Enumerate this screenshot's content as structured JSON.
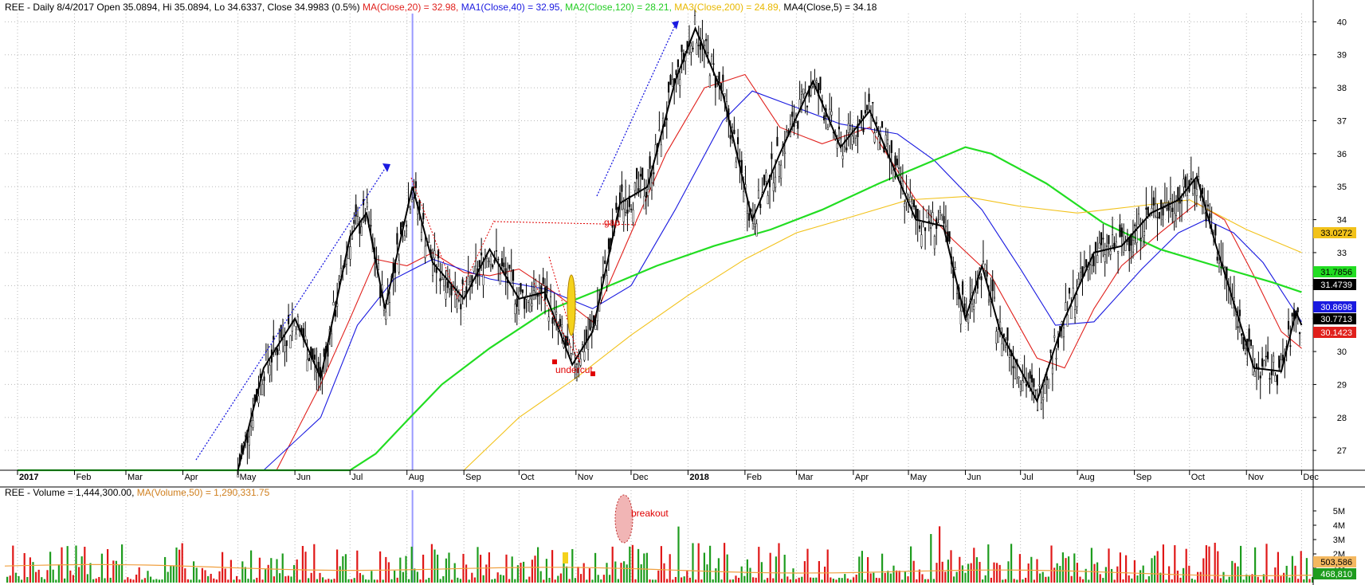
{
  "header": {
    "price": "REE - Daily 8/4/2017 Open 35.0894, Hi 35.0894, Lo 34.6337, Close 34.9983 (0.5%)",
    "ma20": "MA(Close,20) = 32.98,",
    "ma40": "MA1(Close,40) = 32.95,",
    "ma120": "MA2(Close,120) = 28.21,",
    "ma200": "MA3(Close,200) = 24.89,",
    "ma5": "MA4(Close,5) = 34.18"
  },
  "volume_header": {
    "vol": "REE - Volume = 1,444,300.00,",
    "ma": "MA(Volume,50) = 1,290,331.75"
  },
  "colors": {
    "ma20": "#e0201c",
    "ma40": "#1a1ae0",
    "ma120": "#22dd22",
    "ma200": "#f2c21a",
    "ma5": "#000000",
    "up": "#1e9c1e",
    "down": "#e01818",
    "cursor": "#9999ff",
    "grid": "#b8b8b8",
    "annotation": "#e00000"
  },
  "annotations": {
    "gap": "gap",
    "undercut": "undercut",
    "breakout": "breakout"
  },
  "chart_data": [
    {
      "type": "line",
      "panel": "price",
      "x_labels": [
        "2017",
        "Feb",
        "Mar",
        "Apr",
        "May",
        "Jun",
        "Jul",
        "Aug",
        "Sep",
        "Oct",
        "Nov",
        "Dec",
        "2018",
        "Feb",
        "Mar",
        "Apr",
        "May",
        "Jun",
        "Jul",
        "Aug",
        "Sep",
        "Oct",
        "Nov",
        "Dec"
      ],
      "y_ticks": [
        27,
        28,
        29,
        30,
        31,
        32,
        33,
        34,
        35,
        36,
        37,
        38,
        39,
        40
      ],
      "ylim": [
        26.4,
        40.25
      ],
      "last_values": [
        {
          "label": "33.0272",
          "value": 33.03,
          "series": "ma200"
        },
        {
          "label": "31.7856",
          "value": 31.79,
          "series": "ma120"
        },
        {
          "label": "31.4739",
          "value": 31.47,
          "series": "ma5"
        },
        {
          "label": "30.8698",
          "value": 30.87,
          "series": "ma40"
        },
        {
          "label": "30.7713",
          "value": 30.77,
          "series": "price"
        },
        {
          "label": "30.1423",
          "value": 30.14,
          "series": "ma20"
        }
      ],
      "close": [
        {
          "x": "2017-05-01",
          "y": 26.4
        },
        {
          "x": "2017-05-15",
          "y": 29.5
        },
        {
          "x": "2017-06-01",
          "y": 31.0
        },
        {
          "x": "2017-06-15",
          "y": 29.2
        },
        {
          "x": "2017-07-01",
          "y": 33.5
        },
        {
          "x": "2017-07-10",
          "y": 34.2
        },
        {
          "x": "2017-07-20",
          "y": 31.3
        },
        {
          "x": "2017-08-04",
          "y": 35.0
        },
        {
          "x": "2017-08-15",
          "y": 32.7
        },
        {
          "x": "2017-09-01",
          "y": 31.6
        },
        {
          "x": "2017-09-15",
          "y": 33.1
        },
        {
          "x": "2017-10-01",
          "y": 31.6
        },
        {
          "x": "2017-10-15",
          "y": 31.8
        },
        {
          "x": "2017-10-30",
          "y": 29.6
        },
        {
          "x": "2017-11-10",
          "y": 30.6
        },
        {
          "x": "2017-11-25",
          "y": 34.5
        },
        {
          "x": "2017-12-10",
          "y": 35.0
        },
        {
          "x": "2017-12-25",
          "y": 38.2
        },
        {
          "x": "2018-01-05",
          "y": 39.8
        },
        {
          "x": "2018-01-20",
          "y": 37.8
        },
        {
          "x": "2018-02-05",
          "y": 34.0
        },
        {
          "x": "2018-02-20",
          "y": 36.0
        },
        {
          "x": "2018-03-10",
          "y": 38.2
        },
        {
          "x": "2018-03-25",
          "y": 36.2
        },
        {
          "x": "2018-04-10",
          "y": 37.3
        },
        {
          "x": "2018-04-25",
          "y": 35.3
        },
        {
          "x": "2018-05-05",
          "y": 34.0
        },
        {
          "x": "2018-05-20",
          "y": 33.8
        },
        {
          "x": "2018-06-01",
          "y": 31.0
        },
        {
          "x": "2018-06-10",
          "y": 32.6
        },
        {
          "x": "2018-06-20",
          "y": 30.6
        },
        {
          "x": "2018-07-10",
          "y": 28.5
        },
        {
          "x": "2018-07-25",
          "y": 31.0
        },
        {
          "x": "2018-08-10",
          "y": 33.0
        },
        {
          "x": "2018-08-25",
          "y": 33.2
        },
        {
          "x": "2018-09-10",
          "y": 34.2
        },
        {
          "x": "2018-09-25",
          "y": 34.6
        },
        {
          "x": "2018-10-05",
          "y": 35.3
        },
        {
          "x": "2018-10-15",
          "y": 33.3
        },
        {
          "x": "2018-10-25",
          "y": 31.5
        },
        {
          "x": "2018-11-05",
          "y": 29.5
        },
        {
          "x": "2018-11-20",
          "y": 29.4
        },
        {
          "x": "2018-11-28",
          "y": 31.2
        },
        {
          "x": "2018-12-01",
          "y": 30.8
        }
      ],
      "series": [
        {
          "name": "MA(Close,20)",
          "key": "ma20",
          "points": [
            {
              "x": "2017-05-22",
              "y": 26.4
            },
            {
              "x": "2017-06-15",
              "y": 29.0
            },
            {
              "x": "2017-07-01",
              "y": 31.0
            },
            {
              "x": "2017-07-15",
              "y": 32.8
            },
            {
              "x": "2017-08-01",
              "y": 32.6
            },
            {
              "x": "2017-08-15",
              "y": 33.0
            },
            {
              "x": "2017-09-01",
              "y": 32.4
            },
            {
              "x": "2017-09-15",
              "y": 32.3
            },
            {
              "x": "2017-10-01",
              "y": 32.5
            },
            {
              "x": "2017-10-20",
              "y": 31.8
            },
            {
              "x": "2017-11-10",
              "y": 30.9
            },
            {
              "x": "2017-12-01",
              "y": 33.6
            },
            {
              "x": "2017-12-20",
              "y": 36.0
            },
            {
              "x": "2018-01-10",
              "y": 38.0
            },
            {
              "x": "2018-02-01",
              "y": 38.4
            },
            {
              "x": "2018-02-20",
              "y": 36.8
            },
            {
              "x": "2018-03-15",
              "y": 36.3
            },
            {
              "x": "2018-04-10",
              "y": 36.8
            },
            {
              "x": "2018-05-05",
              "y": 34.6
            },
            {
              "x": "2018-05-25",
              "y": 33.4
            },
            {
              "x": "2018-06-15",
              "y": 32.3
            },
            {
              "x": "2018-07-10",
              "y": 29.8
            },
            {
              "x": "2018-07-25",
              "y": 29.5
            },
            {
              "x": "2018-08-10",
              "y": 31.3
            },
            {
              "x": "2018-08-25",
              "y": 32.6
            },
            {
              "x": "2018-09-15",
              "y": 33.6
            },
            {
              "x": "2018-10-05",
              "y": 34.5
            },
            {
              "x": "2018-10-20",
              "y": 34.0
            },
            {
              "x": "2018-11-05",
              "y": 32.3
            },
            {
              "x": "2018-11-20",
              "y": 30.6
            },
            {
              "x": "2018-12-01",
              "y": 30.1
            }
          ]
        },
        {
          "name": "MA1(Close,40)",
          "key": "ma40",
          "points": [
            {
              "x": "2017-05-15",
              "y": 26.4
            },
            {
              "x": "2017-06-15",
              "y": 28.0
            },
            {
              "x": "2017-07-05",
              "y": 30.8
            },
            {
              "x": "2017-07-25",
              "y": 32.2
            },
            {
              "x": "2017-08-15",
              "y": 32.8
            },
            {
              "x": "2017-09-15",
              "y": 32.2
            },
            {
              "x": "2017-10-15",
              "y": 31.9
            },
            {
              "x": "2017-11-10",
              "y": 31.3
            },
            {
              "x": "2017-12-01",
              "y": 32.0
            },
            {
              "x": "2017-12-25",
              "y": 34.3
            },
            {
              "x": "2018-01-20",
              "y": 37.0
            },
            {
              "x": "2018-02-05",
              "y": 37.9
            },
            {
              "x": "2018-03-01",
              "y": 37.4
            },
            {
              "x": "2018-03-25",
              "y": 36.9
            },
            {
              "x": "2018-04-25",
              "y": 36.6
            },
            {
              "x": "2018-05-15",
              "y": 35.8
            },
            {
              "x": "2018-06-10",
              "y": 34.3
            },
            {
              "x": "2018-07-01",
              "y": 32.5
            },
            {
              "x": "2018-07-20",
              "y": 30.8
            },
            {
              "x": "2018-08-10",
              "y": 30.9
            },
            {
              "x": "2018-09-05",
              "y": 32.5
            },
            {
              "x": "2018-09-25",
              "y": 33.6
            },
            {
              "x": "2018-10-10",
              "y": 34.0
            },
            {
              "x": "2018-10-25",
              "y": 33.6
            },
            {
              "x": "2018-11-10",
              "y": 32.7
            },
            {
              "x": "2018-12-01",
              "y": 30.9
            }
          ]
        },
        {
          "name": "MA2(Close,120)",
          "key": "ma120",
          "points": [
            {
              "x": "2017-01-01",
              "y": 26.4
            },
            {
              "x": "2017-07-01",
              "y": 26.4
            },
            {
              "x": "2017-07-15",
              "y": 26.9
            },
            {
              "x": "2017-08-01",
              "y": 27.9
            },
            {
              "x": "2017-08-20",
              "y": 29.0
            },
            {
              "x": "2017-09-15",
              "y": 30.1
            },
            {
              "x": "2017-10-15",
              "y": 31.2
            },
            {
              "x": "2017-11-15",
              "y": 31.9
            },
            {
              "x": "2017-12-15",
              "y": 32.6
            },
            {
              "x": "2018-01-15",
              "y": 33.2
            },
            {
              "x": "2018-02-15",
              "y": 33.7
            },
            {
              "x": "2018-03-15",
              "y": 34.3
            },
            {
              "x": "2018-04-15",
              "y": 35.1
            },
            {
              "x": "2018-05-15",
              "y": 35.8
            },
            {
              "x": "2018-06-01",
              "y": 36.2
            },
            {
              "x": "2018-06-15",
              "y": 36.0
            },
            {
              "x": "2018-07-15",
              "y": 35.1
            },
            {
              "x": "2018-08-15",
              "y": 33.9
            },
            {
              "x": "2018-09-15",
              "y": 33.1
            },
            {
              "x": "2018-10-15",
              "y": 32.6
            },
            {
              "x": "2018-11-15",
              "y": 32.1
            },
            {
              "x": "2018-12-01",
              "y": 31.8
            }
          ]
        },
        {
          "name": "MA3(Close,200)",
          "key": "ma200",
          "points": [
            {
              "x": "2017-09-01",
              "y": 26.4
            },
            {
              "x": "2017-10-01",
              "y": 28.0
            },
            {
              "x": "2017-11-01",
              "y": 29.2
            },
            {
              "x": "2017-12-01",
              "y": 30.5
            },
            {
              "x": "2018-01-01",
              "y": 31.7
            },
            {
              "x": "2018-02-01",
              "y": 32.8
            },
            {
              "x": "2018-03-01",
              "y": 33.6
            },
            {
              "x": "2018-04-01",
              "y": 34.1
            },
            {
              "x": "2018-05-01",
              "y": 34.6
            },
            {
              "x": "2018-06-01",
              "y": 34.7
            },
            {
              "x": "2018-07-01",
              "y": 34.4
            },
            {
              "x": "2018-08-01",
              "y": 34.2
            },
            {
              "x": "2018-09-01",
              "y": 34.4
            },
            {
              "x": "2018-10-01",
              "y": 34.6
            },
            {
              "x": "2018-11-01",
              "y": 33.7
            },
            {
              "x": "2018-12-01",
              "y": 33.0
            }
          ]
        }
      ],
      "annotations": [
        {
          "label": "gap",
          "x": "2017-11-25",
          "y": 33.2
        },
        {
          "label": "undercut",
          "x": "2017-10-30",
          "y": 29.25
        },
        {
          "label": "breakout",
          "panel": "volume",
          "x": "2017-11-25"
        }
      ],
      "cursor_date": "2017-08-04"
    },
    {
      "type": "bar",
      "panel": "volume",
      "y_ticks": [
        "1M",
        "2M",
        "3M",
        "4M",
        "5M"
      ],
      "ylim": [
        0,
        6000000
      ],
      "last_values": [
        {
          "label": "503,586",
          "value": 503586
        },
        {
          "label": "468,810",
          "value": 468810
        }
      ],
      "volume_ma": 1290331.75,
      "volume": 1444300
    }
  ]
}
